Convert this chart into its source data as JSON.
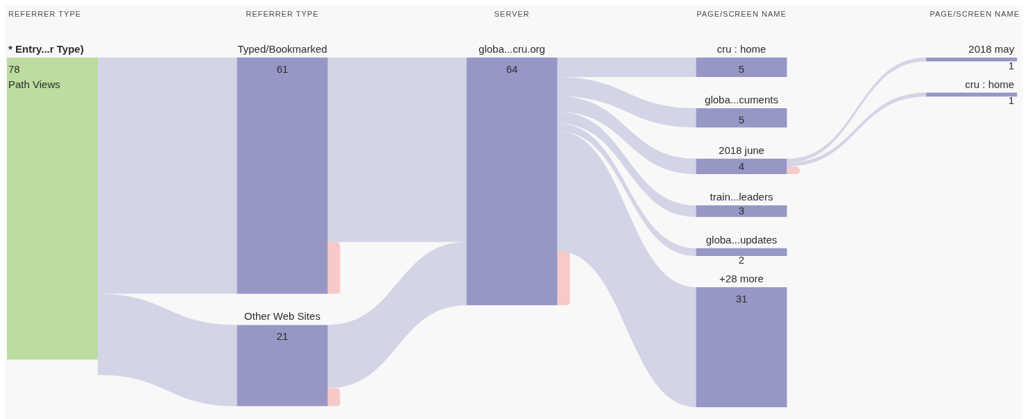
{
  "chart_data": [
    {
      "type": "other",
      "title": "REFERRER TYPE",
      "categories": [
        "* Entry...r Type)"
      ],
      "values": [
        78
      ],
      "color": "#bddc9f",
      "data_labels": true,
      "annotations": [
        "Path Views"
      ]
    },
    {
      "type": "other",
      "title": "REFERRER TYPE",
      "categories": [
        "Typed/Bookmarked",
        "Other Web Sites"
      ],
      "values": [
        61,
        21
      ],
      "color": "#9797c6",
      "data_labels": true
    },
    {
      "type": "other",
      "title": "SERVER",
      "categories": [
        "globa...cru.org"
      ],
      "values": [
        64
      ],
      "color": "#9797c6",
      "data_labels": true
    },
    {
      "type": "other",
      "title": "PAGE/SCREEN NAME",
      "categories": [
        "cru : home",
        "globa...cuments",
        "2018 june",
        "train...leaders",
        "globa...updates",
        "+28 more"
      ],
      "values": [
        5,
        5,
        4,
        3,
        2,
        31
      ],
      "color": "#9797c6",
      "data_labels": true
    },
    {
      "type": "other",
      "title": "PAGE/SCREEN NAME",
      "categories": [
        "2018 may",
        "cru : home"
      ],
      "values": [
        1,
        1
      ],
      "color": "#9797c6",
      "data_labels": true
    }
  ]
}
